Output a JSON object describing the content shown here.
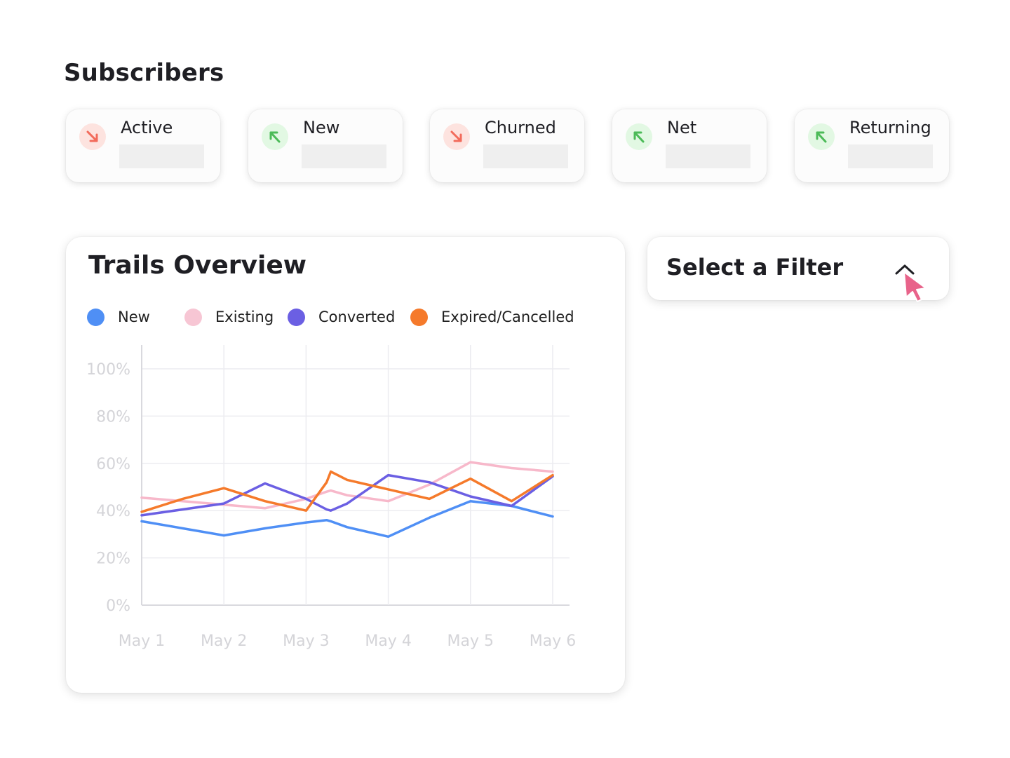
{
  "section": {
    "title": "Subscribers"
  },
  "cards": [
    {
      "label": "Active",
      "trend": "down",
      "icon": "arrow-down-right-icon"
    },
    {
      "label": "New",
      "trend": "up",
      "icon": "arrow-up-left-icon"
    },
    {
      "label": "Churned",
      "trend": "down",
      "icon": "arrow-down-right-icon"
    },
    {
      "label": "Net",
      "trend": "up",
      "icon": "arrow-up-left-icon"
    },
    {
      "label": "Returning",
      "trend": "up",
      "icon": "arrow-up-left-icon"
    }
  ],
  "colors": {
    "trend_down": "#f26b5b",
    "trend_up": "#4cbb58",
    "cursor": "#e8638a"
  },
  "filter": {
    "label": "Select a Filter",
    "icon": "chevron-up-icon"
  },
  "chart_data": {
    "type": "line",
    "title": "Trails Overview",
    "xlabel": "",
    "ylabel": "",
    "x": [
      1.0,
      1.5,
      2.0,
      2.5,
      3.0,
      3.25,
      3.3,
      3.5,
      4.0,
      4.5,
      5.0,
      5.5,
      6.0
    ],
    "categories": [
      "May 1",
      "May 2",
      "May 3",
      "May 4",
      "May 5",
      "May 6"
    ],
    "yticks": [
      "0%",
      "20%",
      "40%",
      "60%",
      "80%",
      "100%"
    ],
    "ylim": [
      0,
      100
    ],
    "grid": true,
    "legend_position": "top",
    "series": [
      {
        "name": "New",
        "color": "#4f8ff5",
        "values": [
          35.5,
          32.5,
          29.5,
          32.5,
          35,
          36,
          35.5,
          33,
          29,
          37,
          44,
          42,
          37.5
        ]
      },
      {
        "name": "Existing",
        "color": "#f7b8ca",
        "values": [
          45.5,
          44,
          42.5,
          41,
          45,
          48,
          48.5,
          46.5,
          44,
          51,
          60.5,
          58,
          56.5
        ]
      },
      {
        "name": "Converted",
        "color": "#6b5fe3",
        "values": [
          38,
          40.5,
          43,
          51.5,
          45,
          40.5,
          40,
          43,
          55,
          52,
          46,
          42,
          54.5
        ]
      },
      {
        "name": "Expired/Cancelled",
        "color": "#f57a2b",
        "values": [
          39.5,
          45,
          49.5,
          44,
          40,
          52,
          56.5,
          53,
          49,
          45,
          53.5,
          44,
          55
        ]
      }
    ]
  }
}
